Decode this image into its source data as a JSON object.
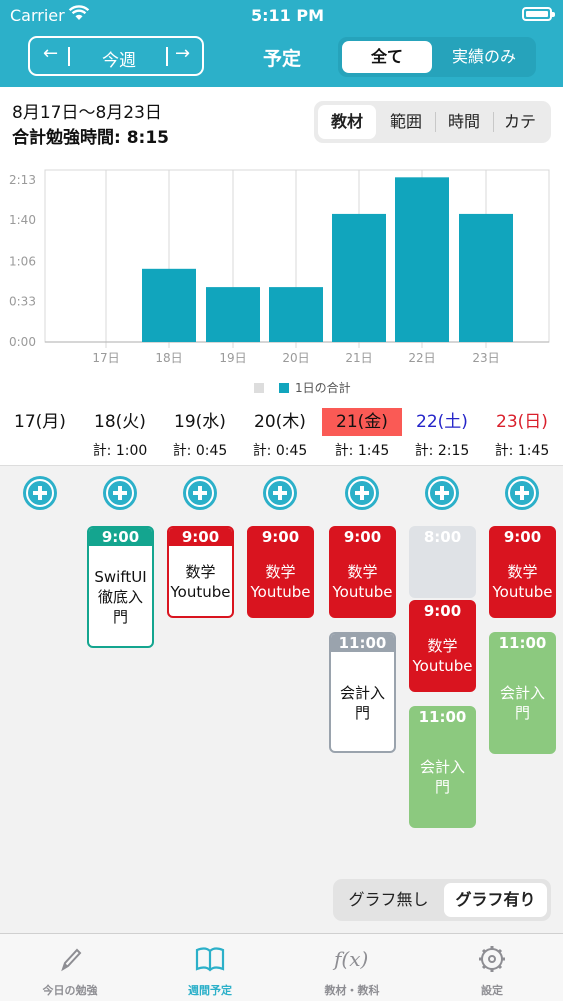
{
  "status_bar": {
    "carrier": "Carrier",
    "time": "5:11 PM"
  },
  "nav": {
    "prev_arrow": "←",
    "week_label": "今週",
    "next_arrow": "→",
    "title": "予定",
    "filter_options": [
      {
        "label": "全て",
        "selected": true
      },
      {
        "label": "実績のみ",
        "selected": false
      }
    ]
  },
  "summary": {
    "date_range": "8月17日〜8月23日",
    "total_label": "合計勉強時間: 8:15"
  },
  "group_by_options": [
    {
      "label": "教材",
      "selected": true
    },
    {
      "label": "範囲",
      "selected": false
    },
    {
      "label": "時間",
      "selected": false
    },
    {
      "label": "カテ",
      "selected": false
    }
  ],
  "chart_data": {
    "type": "bar",
    "categories": [
      "17日",
      "18日",
      "19日",
      "20日",
      "21日",
      "22日",
      "23日"
    ],
    "series": [
      {
        "name": "1日の合計",
        "values": [
          0,
          60,
          45,
          45,
          105,
          135,
          105
        ]
      }
    ],
    "y_ticks": [
      "0:00",
      "0:33",
      "1:06",
      "1:40",
      "2:13"
    ],
    "y_tick_values": [
      0,
      33,
      66,
      100,
      133
    ],
    "y_max": 141,
    "legend": [
      "",
      "1日の合計"
    ],
    "legend_colors": [
      "#dddddd",
      "#11a5bd"
    ],
    "bar_color": "#11a5bd",
    "grid": true,
    "legend_position": "bottom"
  },
  "days": [
    {
      "label": "17(月)",
      "total": "",
      "color": "#111111",
      "highlight": false
    },
    {
      "label": "18(火)",
      "total": "計: 1:00",
      "color": "#111111",
      "highlight": false
    },
    {
      "label": "19(水)",
      "total": "計: 0:45",
      "color": "#111111",
      "highlight": false
    },
    {
      "label": "20(木)",
      "total": "計: 0:45",
      "color": "#111111",
      "highlight": false
    },
    {
      "label": "21(金)",
      "total": "計: 1:45",
      "color": "#111111",
      "highlight": true
    },
    {
      "label": "22(土)",
      "total": "計: 2:15",
      "color": "#2424c8",
      "highlight": false
    },
    {
      "label": "23(日)",
      "total": "計: 1:45",
      "color": "#d91f2b",
      "highlight": false
    }
  ],
  "today_highlight_color": "#fa5a55",
  "cards": [
    {
      "day": 1,
      "start": "9:00",
      "title": "SwiftUI徹底入門",
      "style": "outline",
      "color": "#14a58f"
    },
    {
      "day": 2,
      "start": "9:00",
      "title": "数学Youtube",
      "style": "outline",
      "color": "#d9141f"
    },
    {
      "day": 3,
      "start": "9:00",
      "title": "数学Youtube",
      "style": "filled",
      "color": "#d9141f"
    },
    {
      "day": 4,
      "start": "9:00",
      "title": "数学Youtube",
      "style": "filled",
      "color": "#d9141f"
    },
    {
      "day": 4,
      "start": "11:00",
      "title": "会計入門",
      "style": "outline",
      "color": "#9aa3ad"
    },
    {
      "day": 5,
      "start": "8:00",
      "title": "",
      "style": "filled",
      "color": "#dfe2e6"
    },
    {
      "day": 5,
      "start": "9:00",
      "title": "数学Youtube",
      "style": "filled",
      "color": "#d9141f"
    },
    {
      "day": 5,
      "start": "11:00",
      "title": "会計入門",
      "style": "filled",
      "color": "#8cc97f"
    },
    {
      "day": 6,
      "start": "9:00",
      "title": "数学Youtube",
      "style": "filled",
      "color": "#d9141f"
    },
    {
      "day": 6,
      "start": "11:00",
      "title": "会計入門",
      "style": "filled",
      "color": "#8cc97f"
    }
  ],
  "graph_toggle": [
    {
      "label": "グラフ無し",
      "selected": false
    },
    {
      "label": "グラフ有り",
      "selected": true
    }
  ],
  "tabs": [
    {
      "label": "今日の勉強",
      "icon": "pencil-icon",
      "selected": false
    },
    {
      "label": "週間予定",
      "icon": "book-icon",
      "selected": true
    },
    {
      "label": "教材・教科",
      "icon": "function-icon",
      "selected": false
    },
    {
      "label": "設定",
      "icon": "gear-icon",
      "selected": false
    }
  ],
  "colors": {
    "accent": "#2cb0c9",
    "tab_inactive": "#8e8e93"
  }
}
